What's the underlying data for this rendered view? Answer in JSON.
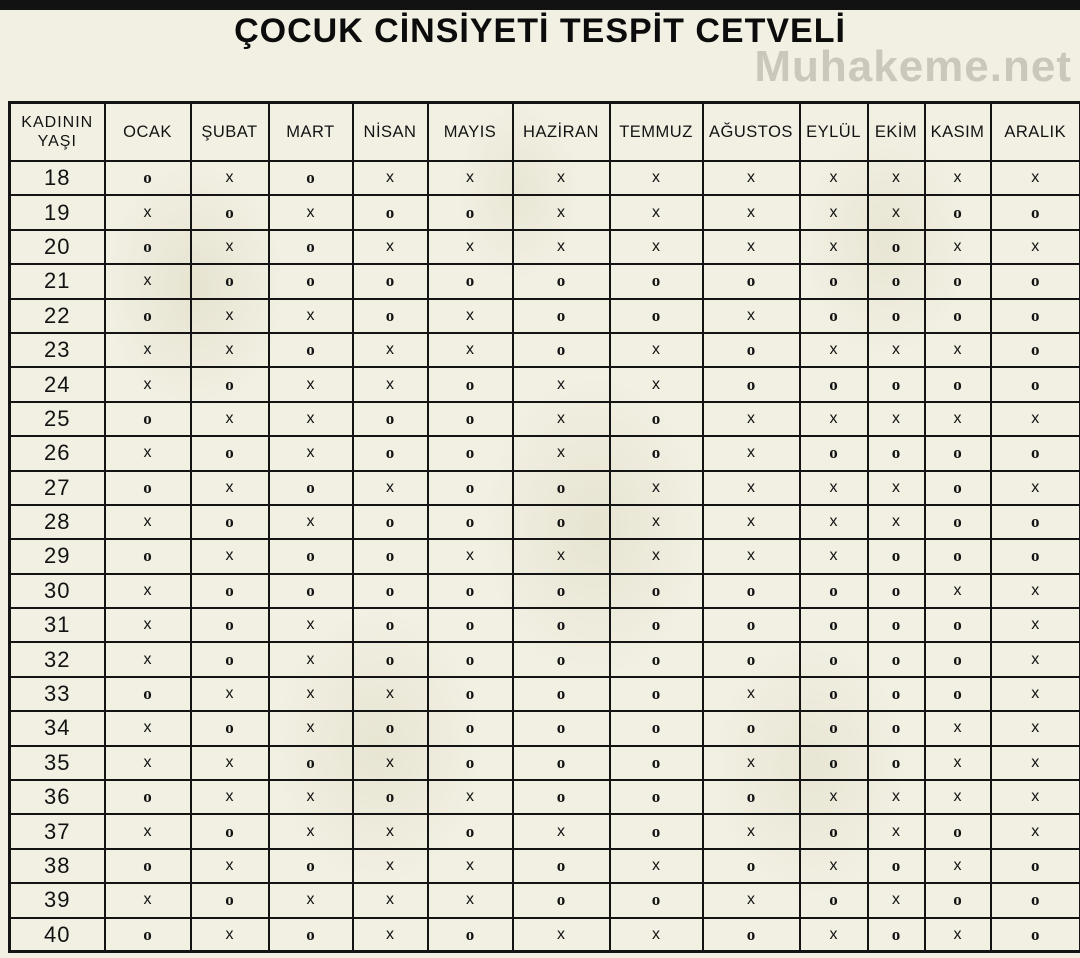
{
  "page": {
    "title": "ÇOCUK CİNSİYETİ TESPİT CETVELİ",
    "watermark": "Muhakeme.net"
  },
  "colors": {
    "background": "#f2f0e3",
    "border": "#141414",
    "text": "#131313",
    "watermark": "#c9c8ba",
    "topbar": "#121212"
  },
  "table": {
    "corner_header": {
      "line1": "KADININ",
      "line2": "YAŞI"
    },
    "month_headers": [
      "OCAK",
      "ŞUBAT",
      "MART",
      "NİSAN",
      "MAYIS",
      "HAZİRAN",
      "TEMMUZ",
      "AĞUSTOS",
      "EYLÜL",
      "EKİM",
      "KASIM",
      "ARALIK"
    ],
    "rows": [
      {
        "age": "18",
        "values": [
          "o",
          "x",
          "o",
          "x",
          "x",
          "x",
          "x",
          "x",
          "x",
          "x",
          "x",
          "x"
        ]
      },
      {
        "age": "19",
        "values": [
          "x",
          "o",
          "x",
          "o",
          "o",
          "x",
          "x",
          "x",
          "x",
          "x",
          "o",
          "o"
        ]
      },
      {
        "age": "20",
        "values": [
          "o",
          "x",
          "o",
          "x",
          "x",
          "x",
          "x",
          "x",
          "x",
          "o",
          "x",
          "x"
        ]
      },
      {
        "age": "21",
        "values": [
          "x",
          "o",
          "o",
          "o",
          "o",
          "o",
          "o",
          "o",
          "o",
          "o",
          "o",
          "o"
        ]
      },
      {
        "age": "22",
        "values": [
          "o",
          "x",
          "x",
          "o",
          "x",
          "o",
          "o",
          "x",
          "o",
          "o",
          "o",
          "o"
        ]
      },
      {
        "age": "23",
        "values": [
          "x",
          "x",
          "o",
          "x",
          "x",
          "o",
          "x",
          "o",
          "x",
          "x",
          "x",
          "o"
        ]
      },
      {
        "age": "24",
        "values": [
          "x",
          "o",
          "x",
          "x",
          "o",
          "x",
          "x",
          "o",
          "o",
          "o",
          "o",
          "o"
        ]
      },
      {
        "age": "25",
        "values": [
          "o",
          "x",
          "x",
          "o",
          "o",
          "x",
          "o",
          "x",
          "x",
          "x",
          "x",
          "x"
        ]
      },
      {
        "age": "26",
        "values": [
          "x",
          "o",
          "x",
          "o",
          "o",
          "x",
          "o",
          "x",
          "o",
          "o",
          "o",
          "o"
        ]
      },
      {
        "age": "27",
        "values": [
          "o",
          "x",
          "o",
          "x",
          "o",
          "o",
          "x",
          "x",
          "x",
          "x",
          "o",
          "x"
        ]
      },
      {
        "age": "28",
        "values": [
          "x",
          "o",
          "x",
          "o",
          "o",
          "o",
          "x",
          "x",
          "x",
          "x",
          "o",
          "o"
        ]
      },
      {
        "age": "29",
        "values": [
          "o",
          "x",
          "o",
          "o",
          "x",
          "x",
          "x",
          "x",
          "x",
          "o",
          "o",
          "o"
        ]
      },
      {
        "age": "30",
        "values": [
          "x",
          "o",
          "o",
          "o",
          "o",
          "o",
          "o",
          "o",
          "o",
          "o",
          "x",
          "x"
        ]
      },
      {
        "age": "31",
        "values": [
          "x",
          "o",
          "x",
          "o",
          "o",
          "o",
          "o",
          "o",
          "o",
          "o",
          "o",
          "x"
        ]
      },
      {
        "age": "32",
        "values": [
          "x",
          "o",
          "x",
          "o",
          "o",
          "o",
          "o",
          "o",
          "o",
          "o",
          "o",
          "x"
        ]
      },
      {
        "age": "33",
        "values": [
          "o",
          "x",
          "x",
          "x",
          "o",
          "o",
          "o",
          "x",
          "o",
          "o",
          "o",
          "x"
        ]
      },
      {
        "age": "34",
        "values": [
          "x",
          "o",
          "x",
          "o",
          "o",
          "o",
          "o",
          "o",
          "o",
          "o",
          "x",
          "x"
        ]
      },
      {
        "age": "35",
        "values": [
          "x",
          "x",
          "o",
          "x",
          "o",
          "o",
          "o",
          "x",
          "o",
          "o",
          "x",
          "x"
        ]
      },
      {
        "age": "36",
        "values": [
          "o",
          "x",
          "x",
          "o",
          "x",
          "o",
          "o",
          "o",
          "x",
          "x",
          "x",
          "x"
        ]
      },
      {
        "age": "37",
        "values": [
          "x",
          "o",
          "x",
          "x",
          "o",
          "x",
          "o",
          "x",
          "o",
          "x",
          "o",
          "x"
        ]
      },
      {
        "age": "38",
        "values": [
          "o",
          "x",
          "o",
          "x",
          "x",
          "o",
          "x",
          "o",
          "x",
          "o",
          "x",
          "o"
        ]
      },
      {
        "age": "39",
        "values": [
          "x",
          "o",
          "x",
          "x",
          "x",
          "o",
          "o",
          "x",
          "o",
          "x",
          "o",
          "o"
        ]
      },
      {
        "age": "40",
        "values": [
          "o",
          "x",
          "o",
          "x",
          "o",
          "x",
          "x",
          "o",
          "x",
          "o",
          "x",
          "o"
        ]
      }
    ]
  }
}
